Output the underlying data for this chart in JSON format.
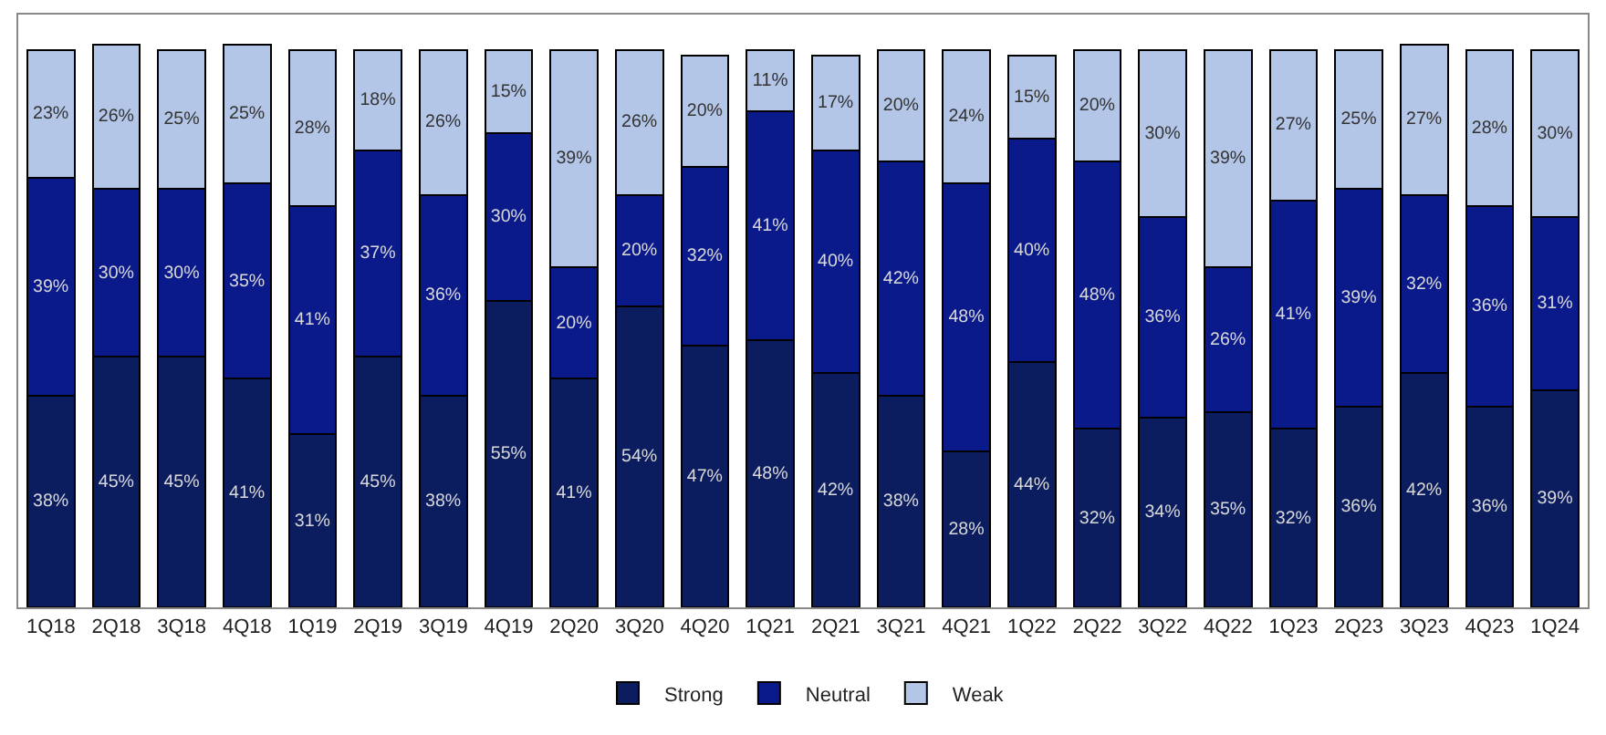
{
  "chart_data": {
    "type": "bar",
    "stacked": true,
    "legend": "bottom",
    "categories": [
      "1Q18",
      "2Q18",
      "3Q18",
      "4Q18",
      "1Q19",
      "2Q19",
      "3Q19",
      "4Q19",
      "2Q20",
      "3Q20",
      "4Q20",
      "1Q21",
      "2Q21",
      "3Q21",
      "4Q21",
      "1Q22",
      "2Q22",
      "3Q22",
      "4Q22",
      "1Q23",
      "2Q23",
      "3Q23",
      "4Q23",
      "1Q24"
    ],
    "series": [
      {
        "name": "Strong",
        "color": "#0b1d5e",
        "values": [
          38,
          45,
          45,
          41,
          31,
          45,
          38,
          55,
          41,
          54,
          47,
          48,
          42,
          38,
          28,
          44,
          32,
          34,
          35,
          32,
          36,
          42,
          36,
          39
        ],
        "value_labels": [
          "38%",
          "45%",
          "45%",
          "41%",
          "31%",
          "45%",
          "38%",
          "55%",
          "41%",
          "54%",
          "47%",
          "48%",
          "42%",
          "38%",
          "28%",
          "44%",
          "32%",
          "34%",
          "35%",
          "32%",
          "36%",
          "42%",
          "36%",
          "39%"
        ]
      },
      {
        "name": "Neutral",
        "color": "#0a1a8a",
        "values": [
          39,
          30,
          30,
          35,
          41,
          37,
          36,
          30,
          20,
          20,
          32,
          41,
          40,
          42,
          48,
          40,
          48,
          36,
          26,
          41,
          39,
          32,
          36,
          31
        ],
        "value_labels": [
          "39%",
          "30%",
          "30%",
          "35%",
          "41%",
          "37%",
          "36%",
          "30%",
          "20%",
          "20%",
          "32%",
          "41%",
          "40%",
          "42%",
          "48%",
          "40%",
          "48%",
          "36%",
          "26%",
          "41%",
          "39%",
          "32%",
          "36%",
          "31%"
        ]
      },
      {
        "name": "Weak",
        "color": "#b4c6e7",
        "values": [
          23,
          26,
          25,
          25,
          28,
          18,
          26,
          15,
          39,
          26,
          20,
          11,
          17,
          20,
          24,
          15,
          20,
          30,
          39,
          27,
          25,
          27,
          28,
          30
        ],
        "value_labels": [
          "23%",
          "26%",
          "25%",
          "25%",
          "28%",
          "18%",
          "26%",
          "15%",
          "39%",
          "26%",
          "20%",
          "11%",
          "17%",
          "20%",
          "24%",
          "15%",
          "20%",
          "30%",
          "39%",
          "27%",
          "25%",
          "27%",
          "28%",
          "30%"
        ]
      }
    ]
  }
}
